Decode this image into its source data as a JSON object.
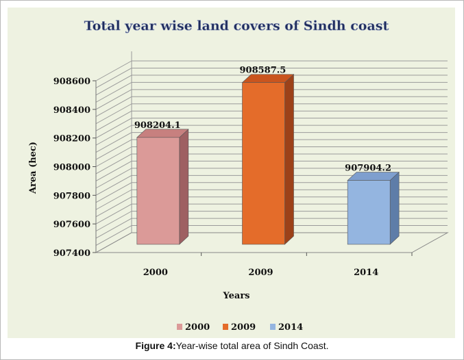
{
  "chart_data": {
    "type": "bar",
    "title": "Total year wise land covers of Sindh coast",
    "xlabel": "Years",
    "ylabel": "Area (hec)",
    "categories": [
      "2000",
      "2009",
      "2014"
    ],
    "values": [
      908204.1,
      908587.5,
      907904.2
    ],
    "value_labels": [
      "908204.1",
      "908587.5",
      "907904.2"
    ],
    "ylim": [
      907400,
      908600
    ],
    "yticks": [
      907400,
      907600,
      907800,
      908000,
      908200,
      908400,
      908600
    ],
    "grid": true,
    "legend_position": "bottom",
    "legend": [
      "2000",
      "2009",
      "2014"
    ],
    "colors": [
      "#db9a98",
      "#e46c2a",
      "#94b5e0"
    ],
    "side_colors": [
      "#9e6062",
      "#9c4119",
      "#5e7da8"
    ],
    "top_colors": [
      "#c7807f",
      "#c9551e",
      "#7e9fce"
    ]
  },
  "caption": {
    "label": "Figure 4:",
    "text": "Year-wise total area of Sindh Coast."
  }
}
